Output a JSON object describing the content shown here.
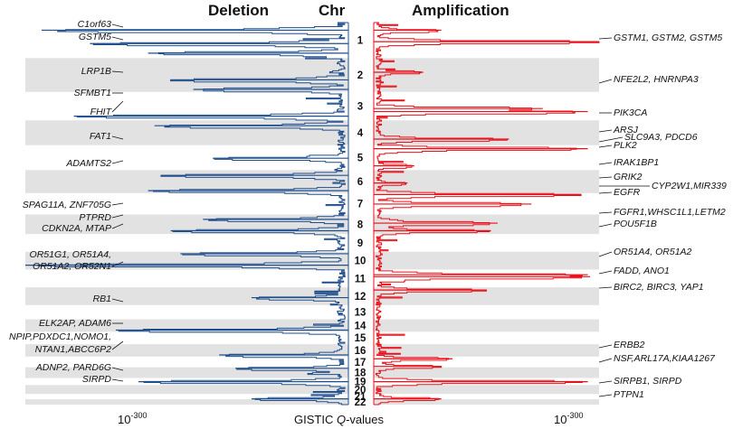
{
  "chart_data": {
    "type": "line",
    "title_left": "Deletion",
    "title_center": "Chr",
    "title_right": "Amplification",
    "xlabel": "GISTIC Q-values",
    "xlabel_prefix": "GISTIC ",
    "xlabel_q": "Q",
    "xlabel_suffix": "-values",
    "axis_min_left": {
      "base": "10",
      "exp": "-300"
    },
    "axis_min_right": {
      "base": "10",
      "exp": "-300"
    },
    "colors": {
      "deletion": "#1f4e8c",
      "amplification": "#e8101a",
      "band": "#e2e2e2"
    },
    "chromosomes": [
      {
        "label": "1",
        "band": false
      },
      {
        "label": "2",
        "band": true
      },
      {
        "label": "3",
        "band": false
      },
      {
        "label": "4",
        "band": true
      },
      {
        "label": "5",
        "band": false
      },
      {
        "label": "6",
        "band": true
      },
      {
        "label": "7",
        "band": false
      },
      {
        "label": "8",
        "band": true
      },
      {
        "label": "9",
        "band": false
      },
      {
        "label": "10",
        "band": true
      },
      {
        "label": "11",
        "band": false
      },
      {
        "label": "12",
        "band": true
      },
      {
        "label": "13",
        "band": false
      },
      {
        "label": "14",
        "band": true
      },
      {
        "label": "15",
        "band": false
      },
      {
        "label": "16",
        "band": true
      },
      {
        "label": "17",
        "band": false
      },
      {
        "label": "18",
        "band": true
      },
      {
        "label": "19",
        "band": false
      },
      {
        "label": "20",
        "band": true
      },
      {
        "label": "21",
        "band": false
      },
      {
        "label": "22",
        "band": true
      }
    ],
    "deletion_labels": [
      "C1orf63",
      "GSTM5",
      "LRP1B",
      "SFMBT1",
      "FHIT",
      "FAT1",
      "ADAMTS2",
      "SPAG11A, ZNF705G",
      "PTPRD",
      "CDKN2A, MTAP",
      "OR51G1, OR51A4,",
      "OR51A2, OR52N1",
      "RB1",
      "ELK2AP, ADAM6",
      "NPIP,PDXDC1,NOMO1,",
      "NTAN1,ABCC6P2",
      "ADNP2, PARD6G",
      "SIRPD"
    ],
    "amplification_labels": [
      "GSTM1, GSTM2, GSTM5",
      "NFE2L2, HNRNPA3",
      "PIK3CA",
      "ARSJ",
      "SLC9A3, PDCD6",
      "PLK2",
      "IRAK1BP1",
      "GRIK2",
      "CYP2W1,MIR339",
      "EGFR",
      "FGFR1,WHSC1L1,LETM2",
      "POU5F1B",
      "OR51A4, OR51A2",
      "FADD, ANO1",
      "BIRC2, BIRC3, YAP1",
      "ERBB2",
      "NSF,ARL17A,KIAA1267",
      "SIRPB1, SIRPD",
      "PTPN1"
    ],
    "deletion_peaks": [
      {
        "pos": 0.02,
        "score": 0.95
      },
      {
        "pos": 0.055,
        "score": 0.8
      },
      {
        "pos": 0.08,
        "score": 0.62
      },
      {
        "pos": 0.15,
        "score": 0.55
      },
      {
        "pos": 0.175,
        "score": 0.48
      },
      {
        "pos": 0.245,
        "score": 0.85
      },
      {
        "pos": 0.27,
        "score": 0.6
      },
      {
        "pos": 0.355,
        "score": 0.42
      },
      {
        "pos": 0.4,
        "score": 0.58
      },
      {
        "pos": 0.44,
        "score": 0.62
      },
      {
        "pos": 0.515,
        "score": 0.45
      },
      {
        "pos": 0.545,
        "score": 0.55
      },
      {
        "pos": 0.605,
        "score": 0.52
      },
      {
        "pos": 0.635,
        "score": 1.0
      },
      {
        "pos": 0.72,
        "score": 0.3
      },
      {
        "pos": 0.805,
        "score": 0.72
      },
      {
        "pos": 0.87,
        "score": 0.4
      },
      {
        "pos": 0.905,
        "score": 0.35
      },
      {
        "pos": 0.94,
        "score": 0.65
      },
      {
        "pos": 0.985,
        "score": 0.3
      }
    ],
    "amplification_peaks": [
      {
        "pos": 0.02,
        "score": 0.3
      },
      {
        "pos": 0.05,
        "score": 1.0
      },
      {
        "pos": 0.13,
        "score": 0.22
      },
      {
        "pos": 0.225,
        "score": 0.75
      },
      {
        "pos": 0.233,
        "score": 0.95
      },
      {
        "pos": 0.305,
        "score": 0.6
      },
      {
        "pos": 0.33,
        "score": 0.95
      },
      {
        "pos": 0.375,
        "score": 0.18
      },
      {
        "pos": 0.42,
        "score": 0.15
      },
      {
        "pos": 0.45,
        "score": 0.92
      },
      {
        "pos": 0.475,
        "score": 0.7
      },
      {
        "pos": 0.525,
        "score": 0.55
      },
      {
        "pos": 0.545,
        "score": 0.52
      },
      {
        "pos": 0.66,
        "score": 0.95
      },
      {
        "pos": 0.665,
        "score": 0.96
      },
      {
        "pos": 0.7,
        "score": 0.5
      },
      {
        "pos": 0.88,
        "score": 0.35
      },
      {
        "pos": 0.9,
        "score": 0.3
      },
      {
        "pos": 0.94,
        "score": 0.95
      },
      {
        "pos": 0.985,
        "score": 0.3
      }
    ]
  }
}
